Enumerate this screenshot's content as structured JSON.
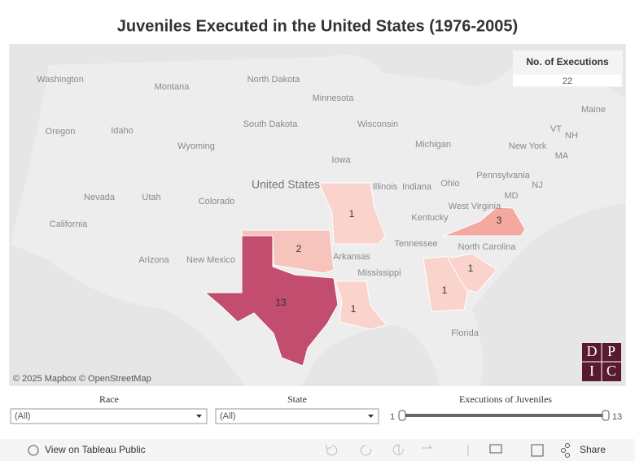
{
  "title": "Juveniles Executed in the United States (1976-2005)",
  "legend": {
    "title": "No. of Executions",
    "total": 22
  },
  "regions": [
    {
      "name": "Texas",
      "value": 13,
      "color": "#c24d6e"
    },
    {
      "name": "Oklahoma",
      "value": 2,
      "color": "#f6c4bd"
    },
    {
      "name": "Missouri",
      "value": 1,
      "color": "#fad3cd"
    },
    {
      "name": "Louisiana",
      "value": 1,
      "color": "#fad3cd"
    },
    {
      "name": "Virginia",
      "value": 3,
      "color": "#f3a99f"
    },
    {
      "name": "Georgia",
      "value": 1,
      "color": "#fad3cd"
    },
    {
      "name": "South Carolina",
      "value": 1,
      "color": "#fad3cd"
    }
  ],
  "map_labels": [
    "Washington",
    "Montana",
    "North Dakota",
    "Minnesota",
    "Oregon",
    "Idaho",
    "South Dakota",
    "Wisconsin",
    "Michigan",
    "Wyoming",
    "Iowa",
    "United States",
    "Nevada",
    "Utah",
    "Colorado",
    "Illinois",
    "Indiana",
    "Ohio",
    "Pennsylvania",
    "New York",
    "California",
    "Kentucky",
    "West Virginia",
    "Tennessee",
    "North Carolina",
    "Arizona",
    "New Mexico",
    "Arkansas",
    "Mississippi",
    "Florida",
    "Maine",
    "VT",
    "NH",
    "MA",
    "MD",
    "NJ"
  ],
  "attribution": "© 2025 Mapbox © OpenStreetMap",
  "logo": [
    "D",
    "P",
    "I",
    "C"
  ],
  "filters": {
    "race": {
      "label": "Race",
      "value": "(All)"
    },
    "state": {
      "label": "State",
      "value": "(All)"
    },
    "executions": {
      "label": "Executions of Juveniles",
      "min": 1,
      "max": 13
    }
  },
  "toolbar": {
    "view": "View on Tableau Public",
    "share": "Share"
  }
}
